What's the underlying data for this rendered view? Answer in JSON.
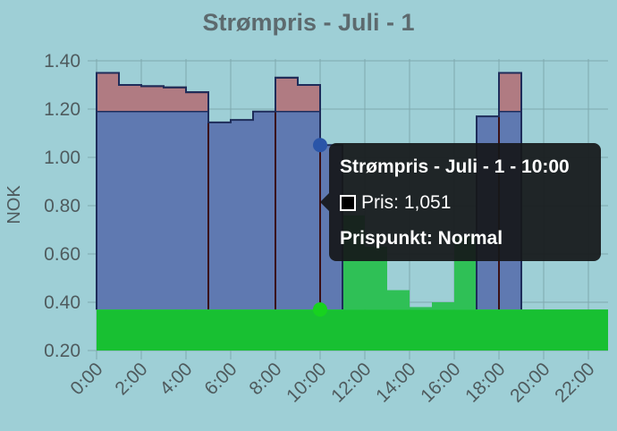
{
  "chart_data": {
    "type": "area",
    "title": "Strømpris - Juli - 1",
    "ylabel": "NOK",
    "xlabel": "",
    "ylim": [
      0.2,
      1.45
    ],
    "xlim": [
      0,
      23
    ],
    "y_ticks": [
      "0.20",
      "0.40",
      "0.60",
      "0.80",
      "1.00",
      "1.20",
      "1.40"
    ],
    "x_ticks": [
      "0:00",
      "2:00",
      "4:00",
      "6:00",
      "8:00",
      "10:00",
      "12:00",
      "14:00",
      "16:00",
      "18:00",
      "20:00",
      "22:00"
    ],
    "grid": true,
    "colors": {
      "red": "#b07b82",
      "blue": "#5f79b1",
      "green": "#18c032",
      "green_light": "#2fc056",
      "line": "#1e2c5a",
      "line_dark": "#3a0f14"
    },
    "hours": [
      0,
      1,
      2,
      3,
      4,
      5,
      6,
      7,
      8,
      9,
      10,
      11,
      12,
      13,
      14,
      15,
      16,
      17,
      18,
      19,
      20,
      21,
      22
    ],
    "price": [
      1.35,
      1.3,
      1.295,
      1.29,
      1.27,
      1.145,
      1.155,
      1.19,
      1.33,
      1.3,
      1.051,
      null,
      null,
      null,
      null,
      null,
      null,
      1.17,
      1.35,
      null,
      null,
      null,
      null
    ],
    "price_low": [
      null,
      null,
      null,
      null,
      null,
      null,
      null,
      null,
      null,
      null,
      null,
      0.76,
      0.63,
      0.45,
      0.38,
      0.4,
      0.67,
      null,
      null,
      null,
      null,
      null,
      null
    ],
    "normal_cap": 1.19,
    "baseline": 0.37,
    "tooltip": {
      "title": "Strømpris - Juli - 1 - 10:00",
      "price": "Pris: 1,051",
      "level": "Prispunkt: Normal",
      "hour": 10
    }
  }
}
